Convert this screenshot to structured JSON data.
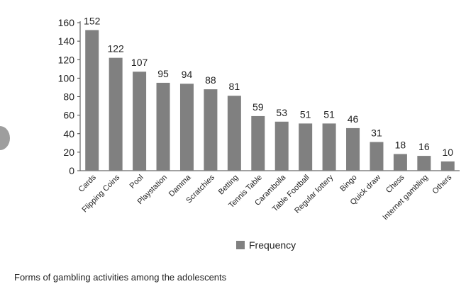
{
  "chart_data": {
    "type": "bar",
    "categories": [
      "Cards",
      "Flipping Coins",
      "Pool",
      "Playstation",
      "Damma",
      "Scratchies",
      "Betting",
      "Tennis Table",
      "Carambolla",
      "Table Football",
      "Regular lottery",
      "Bingo",
      "Quick draw",
      "Chess",
      "Internet gambling",
      "Others"
    ],
    "series": [
      {
        "name": "Frequency",
        "values": [
          152,
          122,
          107,
          95,
          94,
          88,
          81,
          59,
          53,
          51,
          51,
          46,
          31,
          18,
          16,
          10
        ]
      }
    ],
    "ylim": [
      0,
      160
    ],
    "yticks": [
      0,
      20,
      40,
      60,
      80,
      100,
      120,
      140,
      160
    ],
    "xlabel": "",
    "ylabel": "",
    "grid": false,
    "legend": "bottom",
    "bar_color": "#808080",
    "show_data_labels": true
  },
  "caption": "Forms of gambling activities among the adolescents"
}
